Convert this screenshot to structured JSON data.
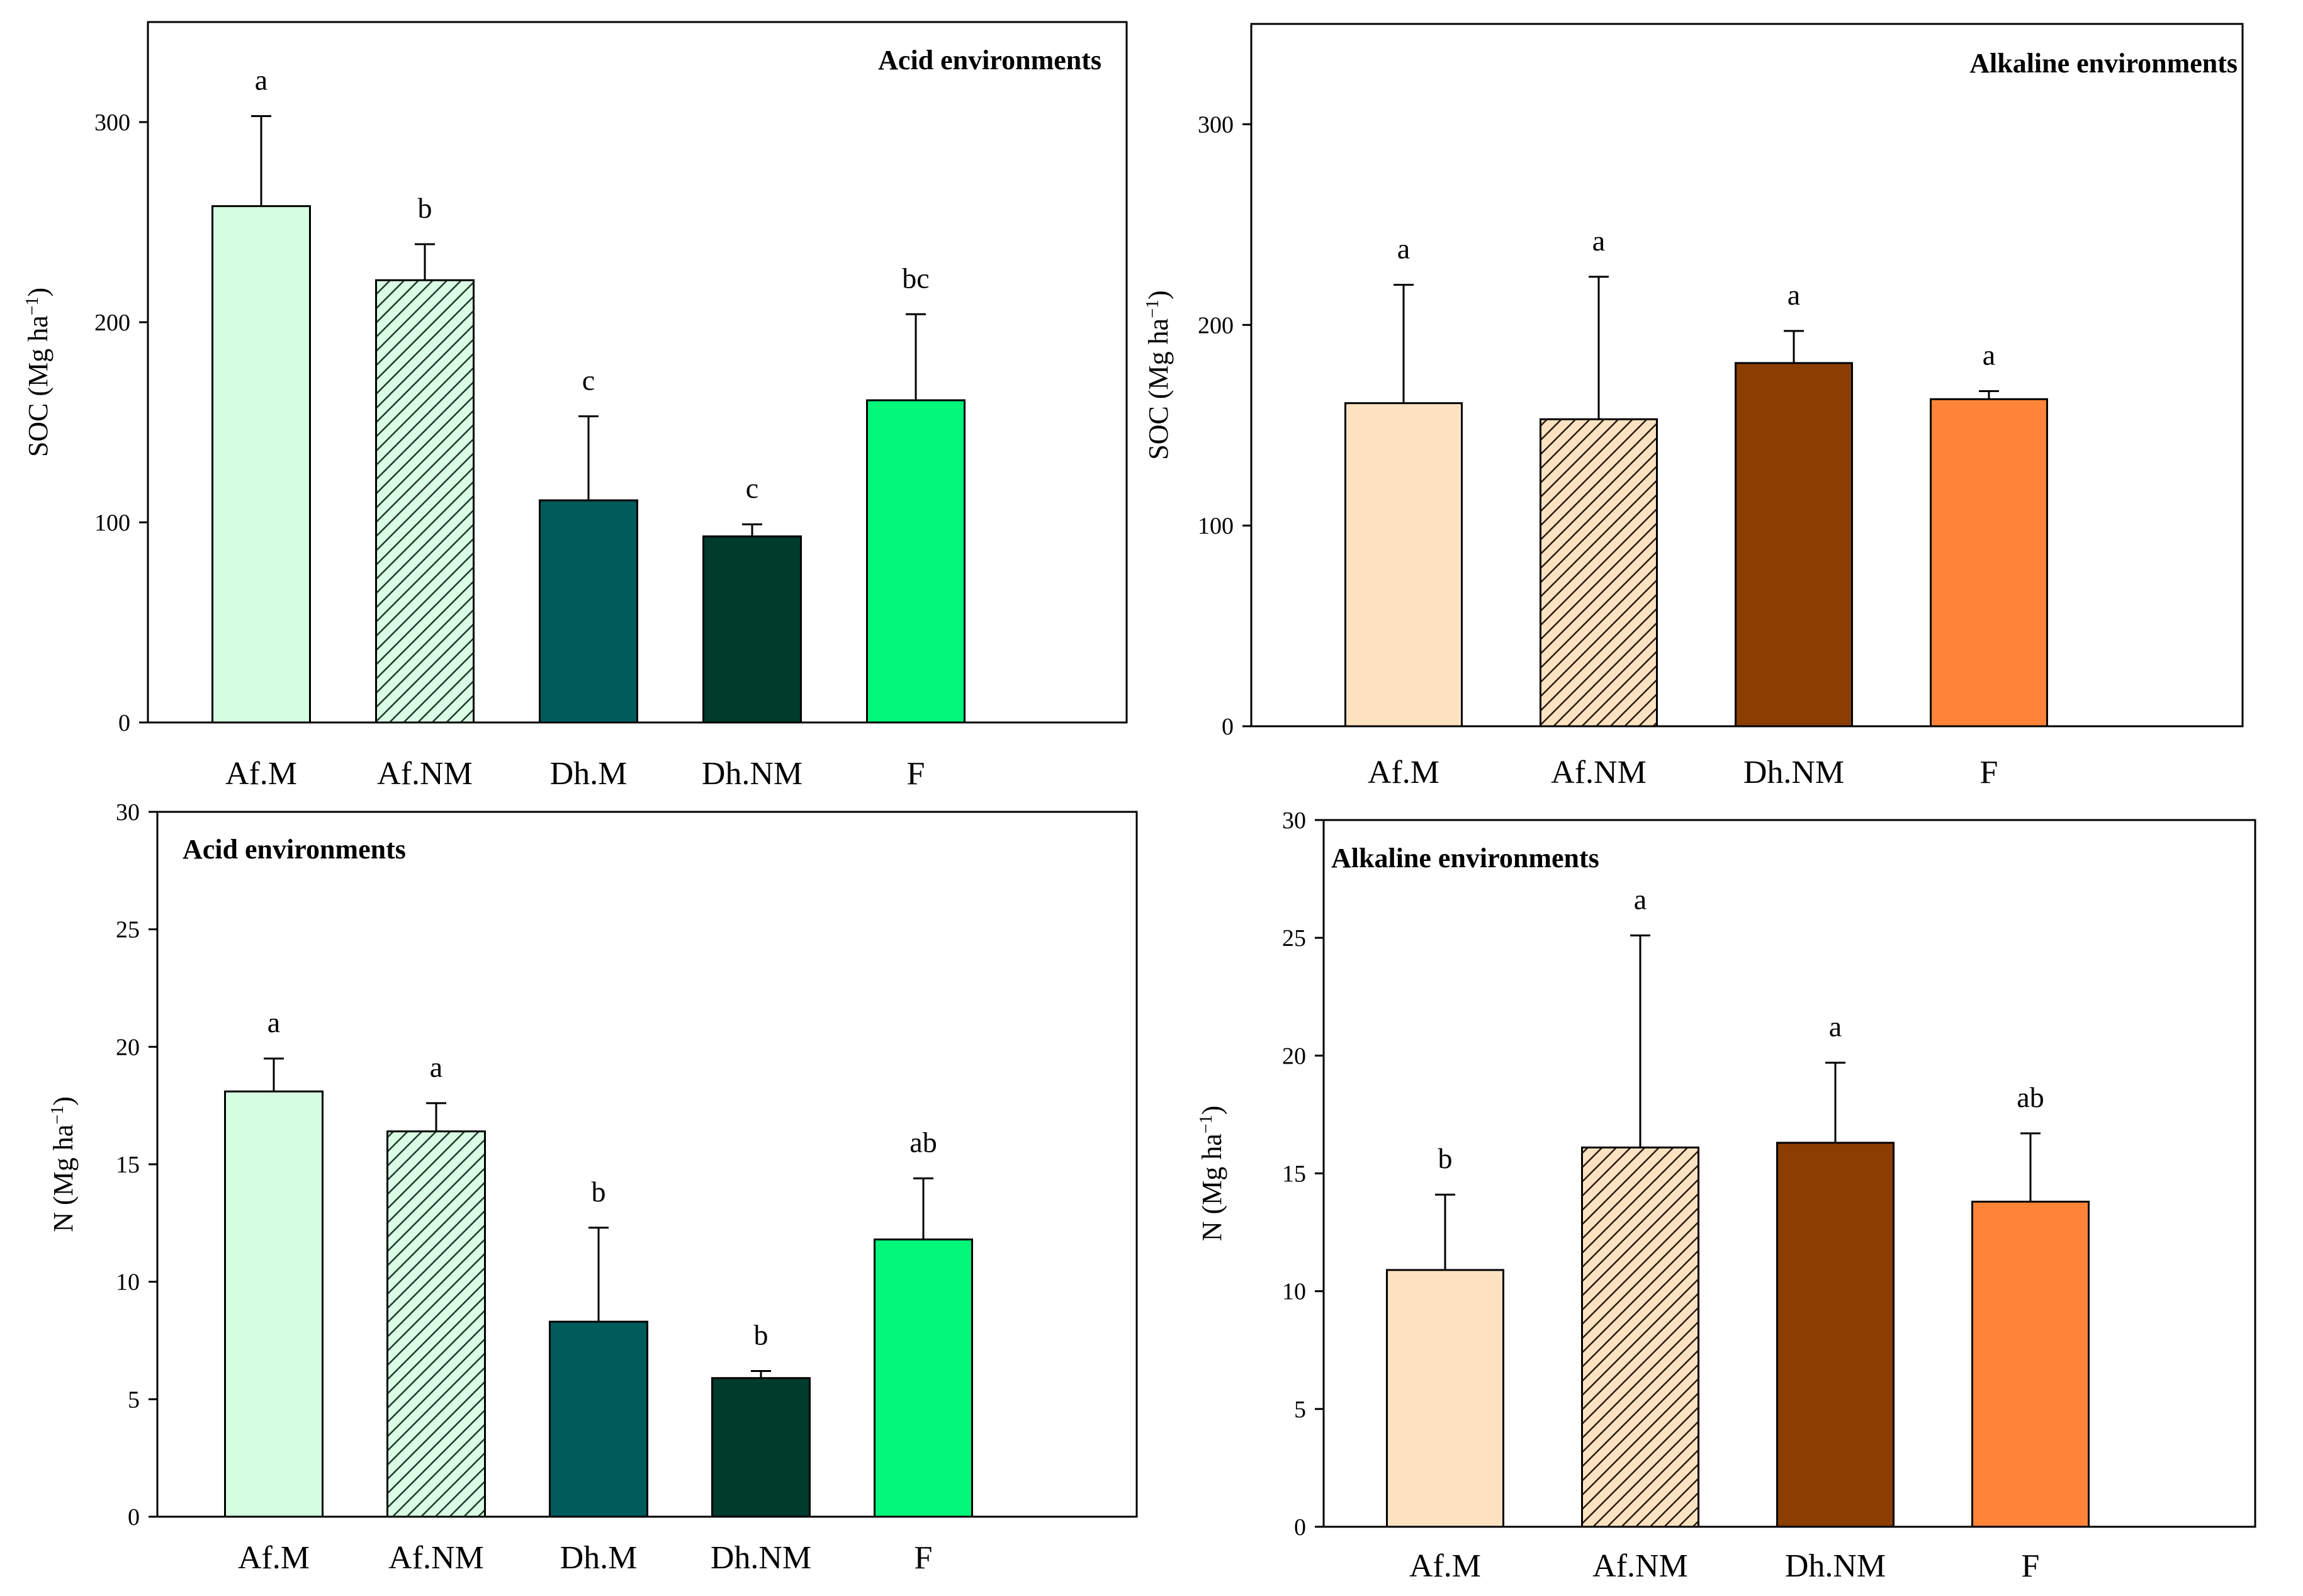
{
  "chart_data": [
    {
      "type": "bar",
      "title": "Acid environments",
      "ylabel": "SOC (Mg ha",
      "ylabel_sup": "−1",
      "ylabel_end": ")",
      "ylim": [
        0,
        350
      ],
      "yticks": [
        0,
        100,
        200,
        300
      ],
      "categories": [
        "Af.M",
        "Af.NM",
        "Dh.M",
        "Dh.NM",
        "F"
      ],
      "values": [
        258,
        221,
        111,
        93,
        161
      ],
      "errors": [
        45,
        18,
        42,
        6,
        43
      ],
      "letters": [
        "a",
        "b",
        "c",
        "c",
        "bc"
      ],
      "colors": [
        "#d4fde1",
        "#c8f5d4",
        "#005b5b",
        "#003b2c",
        "#00f77a"
      ],
      "hatched": [
        false,
        true,
        false,
        false,
        false
      ]
    },
    {
      "type": "bar",
      "title": "Alkaline environments",
      "ylabel": "SOC (Mg ha",
      "ylabel_sup": "−1",
      "ylabel_end": ")",
      "ylim": [
        0,
        350
      ],
      "yticks": [
        0,
        100,
        200,
        300
      ],
      "categories": [
        "Af.M",
        "Af.NM",
        "Dh.NM",
        "F"
      ],
      "values": [
        161,
        153,
        181,
        163
      ],
      "errors": [
        59,
        71,
        16,
        4
      ],
      "letters": [
        "a",
        "a",
        "a",
        "a"
      ],
      "colors": [
        "#fde2c2",
        "#f5d5b0",
        "#8b3e00",
        "#ff8438"
      ],
      "hatched": [
        false,
        true,
        false,
        false
      ]
    },
    {
      "type": "bar",
      "title": "Acid environments",
      "ylabel": "N (Mg ha",
      "ylabel_sup": "−1",
      "ylabel_end": ")",
      "ylim": [
        0,
        30
      ],
      "yticks": [
        0,
        5,
        10,
        15,
        20,
        25,
        30
      ],
      "categories": [
        "Af.M",
        "Af.NM",
        "Dh.M",
        "Dh.NM",
        "F"
      ],
      "values": [
        18.1,
        16.4,
        8.3,
        5.9,
        11.8
      ],
      "errors": [
        1.4,
        1.2,
        4.0,
        0.3,
        2.6
      ],
      "letters": [
        "a",
        "a",
        "b",
        "b",
        "ab"
      ],
      "colors": [
        "#d4fde1",
        "#c8f5d4",
        "#005b5b",
        "#003b2c",
        "#00f77a"
      ],
      "hatched": [
        false,
        true,
        false,
        false,
        false
      ]
    },
    {
      "type": "bar",
      "title": "Alkaline environments",
      "ylabel": "N (Mg ha",
      "ylabel_sup": "−1",
      "ylabel_end": ")",
      "ylim": [
        0,
        30
      ],
      "yticks": [
        0,
        5,
        10,
        15,
        20,
        25,
        30
      ],
      "categories": [
        "Af.M",
        "Af.NM",
        "Dh.NM",
        "F"
      ],
      "values": [
        10.9,
        16.1,
        16.3,
        13.8
      ],
      "errors": [
        3.2,
        9.0,
        3.4,
        2.9
      ],
      "letters": [
        "b",
        "a",
        "a",
        "ab"
      ],
      "colors": [
        "#fde2c2",
        "#f5d5b0",
        "#8b3e00",
        "#ff8438"
      ],
      "hatched": [
        false,
        true,
        false,
        false
      ]
    }
  ]
}
